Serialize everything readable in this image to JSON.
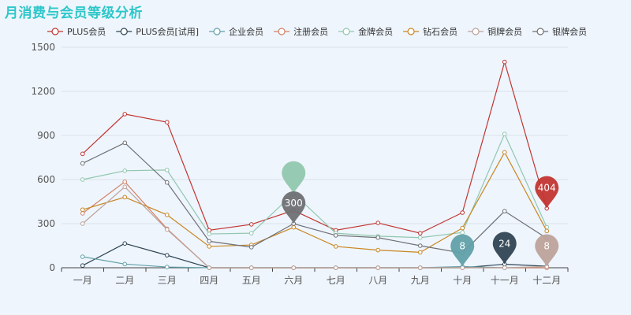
{
  "chart_data": {
    "type": "line",
    "title": "月消费与会员等级分析",
    "categories": [
      "一月",
      "二月",
      "三月",
      "四月",
      "五月",
      "六月",
      "七月",
      "八月",
      "九月",
      "十月",
      "十一月",
      "十二月"
    ],
    "ylim": [
      0,
      1500
    ],
    "yticks": [
      0,
      300,
      600,
      900,
      1200,
      1500
    ],
    "grid": true,
    "legend_position": "top-right",
    "series": [
      {
        "name": "PLUS会员",
        "color": "#c23531",
        "values": [
          775,
          1045,
          990,
          255,
          295,
          390,
          255,
          305,
          235,
          375,
          1400,
          404
        ]
      },
      {
        "name": "PLUS会员[试用]",
        "color": "#2f4554",
        "values": [
          15,
          165,
          85,
          0,
          0,
          0,
          0,
          0,
          0,
          0,
          24,
          10
        ]
      },
      {
        "name": "企业会员",
        "color": "#61a0a8",
        "values": [
          75,
          25,
          5,
          0,
          0,
          0,
          0,
          0,
          0,
          8,
          0,
          0
        ]
      },
      {
        "name": "注册会员",
        "color": "#d48265",
        "values": [
          370,
          585,
          265,
          0,
          0,
          0,
          0,
          0,
          0,
          0,
          0,
          0
        ]
      },
      {
        "name": "金牌会员",
        "color": "#91c7ae",
        "values": [
          600,
          660,
          665,
          230,
          235,
          505,
          235,
          215,
          205,
          240,
          910,
          275
        ]
      },
      {
        "name": "钻石会员",
        "color": "#ca8622",
        "values": [
          395,
          480,
          360,
          145,
          155,
          275,
          145,
          120,
          105,
          270,
          785,
          250
        ]
      },
      {
        "name": "铜牌会员",
        "color": "#bda29a",
        "values": [
          300,
          550,
          260,
          0,
          0,
          0,
          0,
          0,
          0,
          0,
          0,
          8
        ]
      },
      {
        "name": "银牌会员",
        "color": "#6e7074",
        "values": [
          710,
          850,
          580,
          180,
          140,
          300,
          220,
          205,
          150,
          100,
          385,
          200
        ]
      }
    ],
    "markers": [
      {
        "series": 4,
        "category": 5,
        "value": 505,
        "label": ""
      },
      {
        "series": 7,
        "category": 5,
        "value": 300,
        "label": "300"
      },
      {
        "series": 0,
        "category": 11,
        "value": 404,
        "label": "404"
      },
      {
        "series": 2,
        "category": 9,
        "value": 8,
        "label": "8"
      },
      {
        "series": 1,
        "category": 10,
        "value": 24,
        "label": "24"
      },
      {
        "series": 6,
        "category": 11,
        "value": 8,
        "label": "8"
      }
    ]
  }
}
